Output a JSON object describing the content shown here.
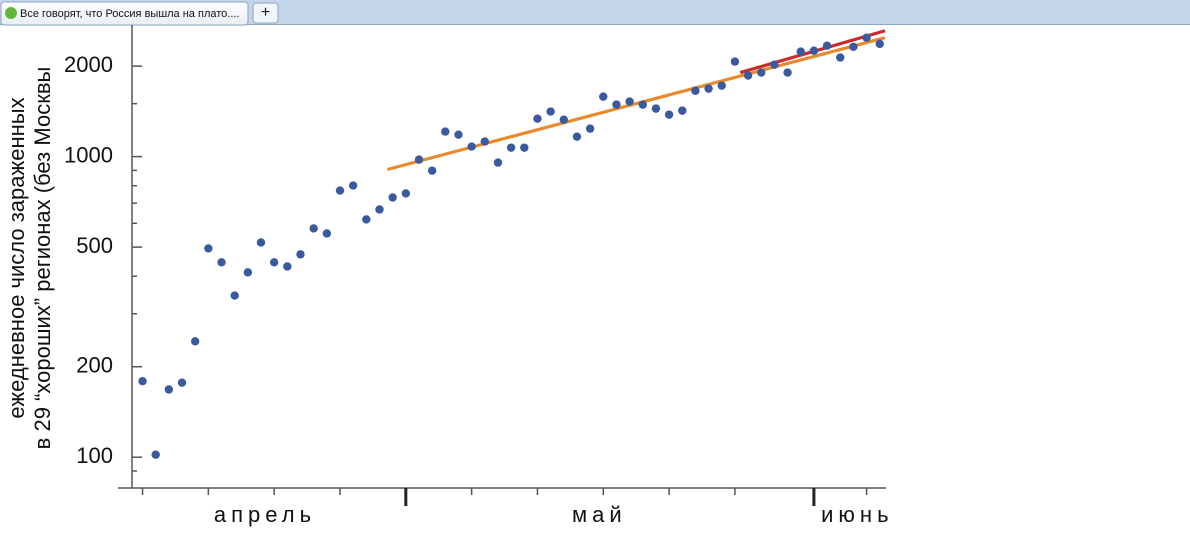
{
  "browser": {
    "tab_title": "Все говорят, что Россия вышла на плато....",
    "new_tab": "+"
  },
  "chart_data": {
    "type": "scatter",
    "y_label_lines": [
      "ежедневное число зараженных",
      "в 29 “хороших” регионах (без Москвы"
    ],
    "x": [
      11,
      12,
      13,
      14,
      15,
      16,
      17,
      18,
      19,
      20,
      21,
      22,
      23,
      24,
      25,
      26,
      27,
      28,
      29,
      30,
      31,
      32,
      33,
      34,
      35,
      36,
      37,
      38,
      39,
      40,
      41,
      42,
      43,
      44,
      45,
      46,
      47,
      48,
      49,
      50,
      51,
      52,
      53,
      54,
      55,
      56,
      57,
      58,
      59,
      60,
      61,
      62,
      63,
      64,
      65,
      66,
      67
    ],
    "values": [
      179,
      102,
      168,
      177,
      243,
      495,
      445,
      345,
      412,
      518,
      445,
      431,
      473,
      577,
      555,
      771,
      801,
      618,
      667,
      731,
      754,
      977,
      898,
      1211,
      1183,
      1080,
      1122,
      955,
      1071,
      1071,
      1337,
      1412,
      1327,
      1165,
      1239,
      1583,
      1489,
      1524,
      1489,
      1444,
      1379,
      1422,
      1656,
      1683,
      1722,
      2070,
      1860,
      1903,
      2022,
      1903,
      2235,
      2250,
      2338,
      2135,
      2318,
      2486,
      2371
    ],
    "color": "#3b5a9d",
    "fit_lines": [
      {
        "x": [
          29.6,
          67.4
        ],
        "values": [
          906,
          2486
        ],
        "color": "#e8892c"
      },
      {
        "x": [
          56.4,
          67.4
        ],
        "values": [
          1903,
          2622
        ],
        "color": "#cc2b2b"
      }
    ],
    "log_y": true,
    "xlim": [
      10.2,
      67.4
    ],
    "ylim": [
      79,
      2740
    ],
    "yticks": [
      100,
      200,
      500,
      1000,
      2000
    ],
    "minor_yticks": [
      90,
      300,
      400,
      600,
      700,
      800,
      900,
      1500
    ],
    "month_ticks": [
      31,
      62
    ],
    "minor_xticks": [
      11,
      16,
      21,
      26,
      36,
      41,
      46,
      51,
      56,
      66
    ],
    "month_labels": [
      {
        "value": 20.3,
        "label": "апрель"
      },
      {
        "value": 45.7,
        "label": "май"
      },
      {
        "value": 65.3,
        "label": "июнь"
      }
    ]
  }
}
